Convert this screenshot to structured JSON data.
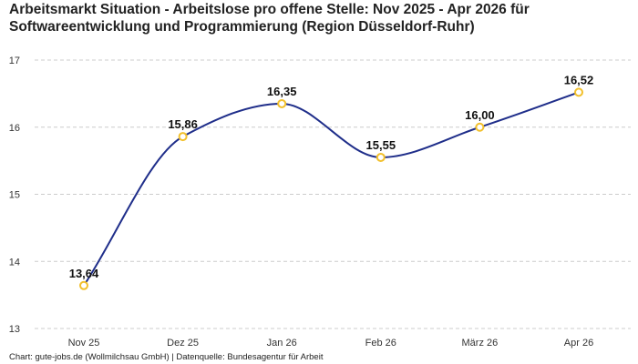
{
  "chart_data": {
    "type": "line",
    "title": "Arbeitsmarkt Situation - Arbeitslose pro offene Stelle: Nov 2025 - Apr 2026 für Softwareentwicklung und Programmierung (Region Düsseldorf-Ruhr)",
    "categories": [
      "Nov 25",
      "Dez 25",
      "Jan 26",
      "Feb 26",
      "März 26",
      "Apr 26"
    ],
    "series": [
      {
        "values": [
          13.64,
          15.86,
          16.35,
          15.55,
          16.0,
          16.52
        ]
      }
    ],
    "data_labels": [
      "13,64",
      "15,86",
      "16,35",
      "15,55",
      "16,00",
      "16,52"
    ],
    "ylim": [
      13,
      17
    ],
    "yticks": [
      13,
      14,
      15,
      16,
      17
    ],
    "ytick_labels": [
      "13",
      "14",
      "15",
      "16",
      "17"
    ],
    "xlabel": "",
    "ylabel": "",
    "grid": "horizontal-dashed",
    "colors": {
      "line": "#1f2e8a",
      "marker": "#f2c02c",
      "grid": "#cccccc"
    }
  },
  "footer": "Chart: gute-jobs.de (Wollmilchsau GmbH) | Datenquelle: Bundesagentur für Arbeit"
}
